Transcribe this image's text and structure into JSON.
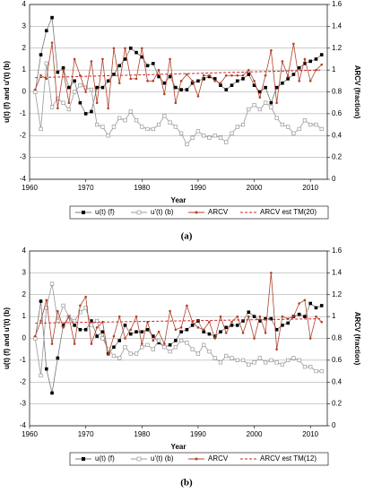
{
  "chart_data": [
    {
      "type": "line",
      "caption": "(a)",
      "xlabel": "Year",
      "ylabel": "u(t) (f) and u'(t) (b)",
      "y2label": "ARCV (fraction)",
      "xlim": [
        1960,
        2013
      ],
      "xticks": [
        1960,
        1970,
        1980,
        1990,
        2000,
        2010
      ],
      "ylim": [
        -4,
        4
      ],
      "yticks": [
        -4,
        -3,
        -2,
        -1,
        0,
        1,
        2,
        3,
        4
      ],
      "y2lim": [
        0,
        1.6
      ],
      "y2ticks": [
        0,
        0.2,
        0.4,
        0.6,
        0.8,
        1,
        1.2,
        1.4,
        1.6
      ],
      "grid": true,
      "x": [
        1961,
        1962,
        1963,
        1964,
        1965,
        1966,
        1967,
        1968,
        1969,
        1970,
        1971,
        1972,
        1973,
        1974,
        1975,
        1976,
        1977,
        1978,
        1979,
        1980,
        1981,
        1982,
        1983,
        1984,
        1985,
        1986,
        1987,
        1988,
        1989,
        1990,
        1991,
        1992,
        1993,
        1994,
        1995,
        1996,
        1997,
        1998,
        1999,
        2000,
        2001,
        2002,
        2003,
        2004,
        2005,
        2006,
        2007,
        2008,
        2009,
        2010,
        2011,
        2012
      ],
      "series": [
        {
          "name": "u(t) (f)",
          "color": "#000000",
          "marker": "filled-square",
          "values": [
            0,
            1.7,
            2.8,
            3.4,
            0.9,
            1.1,
            0.2,
            0.5,
            -0.5,
            -1.0,
            -0.9,
            0.2,
            0.2,
            0.5,
            0.8,
            1.2,
            1.5,
            2.0,
            1.8,
            1.6,
            1.2,
            1.3,
            0.7,
            0.4,
            0.7,
            0.2,
            0.1,
            0.1,
            0.4,
            0.5,
            0.6,
            0.7,
            0.6,
            0.3,
            0.1,
            0.3,
            0.5,
            0.6,
            0.8,
            0.3,
            0.0,
            0.2,
            -0.5,
            0.2,
            0.4,
            0.6,
            0.8,
            1.1,
            1.3,
            1.4,
            1.5,
            1.7
          ]
        },
        {
          "name": "u'(t) (b)",
          "color": "#999999",
          "marker": "open-square",
          "values": [
            0,
            -1.7,
            1.3,
            -0.7,
            -0.3,
            -0.5,
            -0.8,
            0.0,
            0.3,
            0.2,
            0.1,
            -1.5,
            -1.6,
            -2.0,
            -1.6,
            -1.2,
            -1.3,
            -0.9,
            -1.3,
            -1.6,
            -1.7,
            -1.7,
            -1.5,
            -1.1,
            -1.4,
            -1.6,
            -1.9,
            -2.4,
            -2.1,
            -1.8,
            -2.0,
            -2.1,
            -2.0,
            -2.1,
            -2.3,
            -1.9,
            -1.6,
            -1.5,
            -0.8,
            -0.6,
            -0.8,
            -0.5,
            -0.7,
            -1.2,
            -1.5,
            -1.6,
            -1.9,
            -1.7,
            -1.3,
            -1.5,
            -1.5,
            -1.7
          ]
        },
        {
          "name": "ARCV",
          "color": "#b0422a",
          "marker": "dot",
          "axis": "y2",
          "values": [
            0.82,
            0.95,
            0.92,
            1.25,
            0.65,
            1.0,
            0.7,
            1.1,
            0.95,
            0.8,
            1.08,
            0.7,
            1.1,
            0.65,
            1.2,
            0.88,
            1.2,
            0.92,
            0.92,
            1.2,
            0.9,
            0.9,
            1.0,
            0.78,
            1.1,
            0.7,
            0.9,
            0.96,
            0.9,
            0.76,
            0.95,
            0.95,
            0.9,
            0.88,
            0.95,
            0.95,
            0.95,
            0.95,
            1.0,
            0.9,
            0.75,
            0.95,
            1.18,
            0.7,
            1.08,
            0.94,
            1.24,
            0.9,
            1.1,
            0.9,
            1.0,
            1.05
          ]
        },
        {
          "name": "ARCV est TM(20)",
          "color": "#d02020",
          "dashed": true,
          "axis": "y2",
          "x": [
            1961,
            2012
          ],
          "values": [
            0.93,
            1.0
          ]
        }
      ]
    },
    {
      "type": "line",
      "caption": "(b)",
      "xlabel": "Year",
      "ylabel": "u(t) (f) and u'(t) (b)",
      "y2label": "ARCV (fraction)",
      "xlim": [
        1960,
        2013
      ],
      "xticks": [
        1960,
        1970,
        1980,
        1990,
        2000,
        2010
      ],
      "ylim": [
        -4,
        4
      ],
      "yticks": [
        -4,
        -3,
        -2,
        -1,
        0,
        1,
        2,
        3,
        4
      ],
      "y2lim": [
        0,
        1.6
      ],
      "y2ticks": [
        0,
        0.2,
        0.4,
        0.6,
        0.8,
        1,
        1.2,
        1.4,
        1.6
      ],
      "grid": true,
      "x": [
        1961,
        1962,
        1963,
        1964,
        1965,
        1966,
        1967,
        1968,
        1969,
        1970,
        1971,
        1972,
        1973,
        1974,
        1975,
        1976,
        1977,
        1978,
        1979,
        1980,
        1981,
        1982,
        1983,
        1984,
        1985,
        1986,
        1987,
        1988,
        1989,
        1990,
        1991,
        1992,
        1993,
        1994,
        1995,
        1996,
        1997,
        1998,
        1999,
        2000,
        2001,
        2002,
        2003,
        2004,
        2005,
        2006,
        2007,
        2008,
        2009,
        2010,
        2011,
        2012
      ],
      "series": [
        {
          "name": "u(t) (f)",
          "color": "#000000",
          "marker": "filled-square",
          "values": [
            0,
            1.7,
            -1.4,
            -2.5,
            -0.9,
            0.6,
            1.0,
            0.6,
            0.4,
            0.4,
            0.8,
            0.1,
            0.3,
            -0.7,
            -0.4,
            -0.1,
            0.6,
            0.2,
            0.3,
            0.3,
            0.4,
            0.1,
            -0.2,
            -0.4,
            -0.3,
            -0.1,
            0.3,
            0.4,
            0.6,
            0.8,
            0.3,
            0.2,
            0.1,
            0.3,
            0.5,
            0.6,
            0.6,
            0.8,
            1.2,
            1.0,
            0.8,
            0.9,
            0.9,
            0.4,
            0.6,
            0.7,
            1.0,
            1.1,
            1.0,
            1.6,
            1.4,
            1.5
          ]
        },
        {
          "name": "u'(t) (b)",
          "color": "#999999",
          "marker": "open-square",
          "values": [
            0,
            -1.7,
            1.4,
            2.5,
            0.8,
            1.5,
            1.0,
            0.8,
            1.2,
            1.4,
            0.6,
            0.8,
            0.0,
            -0.5,
            -0.8,
            -0.9,
            -0.4,
            -0.7,
            -0.7,
            -0.4,
            -0.3,
            -0.5,
            -0.1,
            -0.4,
            -0.6,
            -0.4,
            -0.1,
            -0.2,
            -0.5,
            -0.7,
            -0.3,
            -0.6,
            -0.9,
            -1.1,
            -0.8,
            -0.9,
            -1.0,
            -1.0,
            -1.2,
            -1.1,
            -0.9,
            -1.1,
            -1.0,
            -1.1,
            -1.2,
            -1.0,
            -0.9,
            -1.0,
            -1.3,
            -1.3,
            -1.5,
            -1.5
          ]
        },
        {
          "name": "ARCV",
          "color": "#b0422a",
          "marker": "dot",
          "axis": "y2",
          "values": [
            0.82,
            0.96,
            1.15,
            0.75,
            1.05,
            0.9,
            1.0,
            0.75,
            1.1,
            1.18,
            0.75,
            0.9,
            0.95,
            0.65,
            0.82,
            1.0,
            0.8,
            0.88,
            1.0,
            0.75,
            0.95,
            0.78,
            0.86,
            0.75,
            1.05,
            0.88,
            0.9,
            1.1,
            0.95,
            0.9,
            0.88,
            0.95,
            0.8,
            1.0,
            0.85,
            0.95,
            1.0,
            0.85,
            1.0,
            0.8,
            1.0,
            0.85,
            1.4,
            0.7,
            1.0,
            0.98,
            1.0,
            1.12,
            1.15,
            0.8,
            1.0,
            0.95
          ]
        },
        {
          "name": "ARCV est TM(12)",
          "color": "#d02020",
          "dashed": true,
          "axis": "y2",
          "x": [
            1961,
            2012
          ],
          "values": [
            0.94,
            0.98
          ]
        }
      ]
    }
  ]
}
